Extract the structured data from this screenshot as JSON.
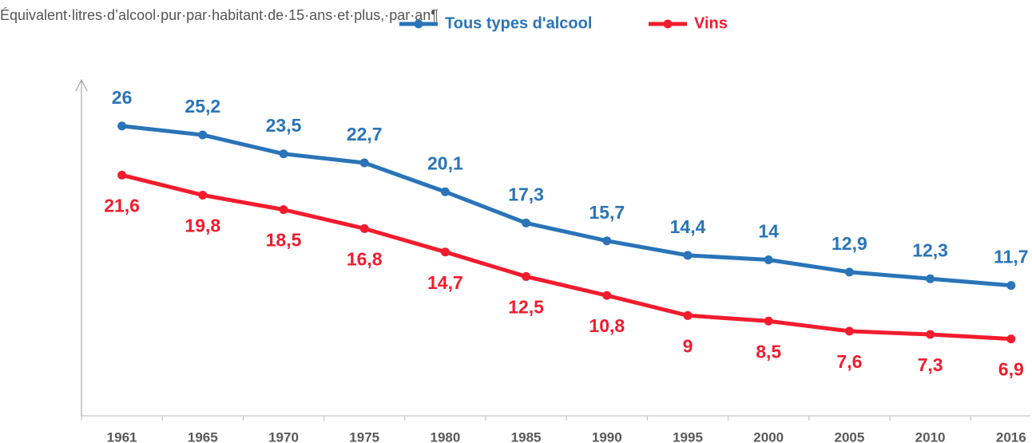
{
  "chart_data": {
    "type": "line",
    "ylabel": "Équivalent·litres·d’alcool·pur·par·habitant·de·15·ans·et·plus,·par·an¶",
    "categories": [
      "1961",
      "1965",
      "1970",
      "1975",
      "1980",
      "1985",
      "1990",
      "1995",
      "2000",
      "2005",
      "2010",
      "2016"
    ],
    "series": [
      {
        "name": "Tous types d'alcool",
        "color": "#2a74b8",
        "values": [
          26,
          25.2,
          23.5,
          22.7,
          20.1,
          17.3,
          15.7,
          14.4,
          14,
          12.9,
          12.3,
          11.7
        ],
        "value_labels": [
          "26",
          "25,2",
          "23,5",
          "22,7",
          "20,1",
          "17,3",
          "15,7",
          "14,4",
          "14",
          "12,9",
          "12,3",
          "11,7"
        ]
      },
      {
        "name": "Vins",
        "color": "#f21c2e",
        "values": [
          21.6,
          19.8,
          18.5,
          16.8,
          14.7,
          12.5,
          10.8,
          9,
          8.5,
          7.6,
          7.3,
          6.9
        ],
        "value_labels": [
          "21,6",
          "19,8",
          "18,5",
          "16,8",
          "14,7",
          "12,5",
          "10,8",
          "9",
          "8,5",
          "7,6",
          "7,3",
          "6,9"
        ]
      }
    ],
    "ylim": [
      0,
      29.5
    ]
  }
}
